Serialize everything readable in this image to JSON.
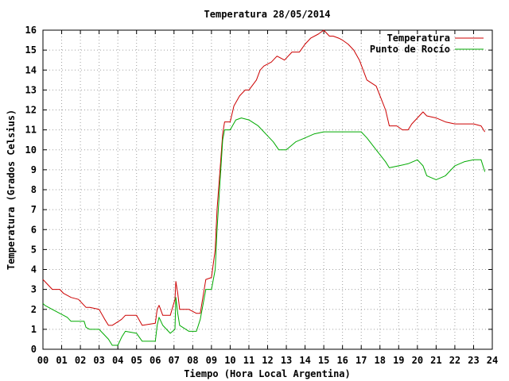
{
  "chart_data": {
    "type": "line",
    "title": "Temperatura 28/05/2014",
    "xlabel": "Tiempo (Hora Local Argentina)",
    "ylabel": "Temperatura (Grados Celsius)",
    "xlim": [
      0,
      24
    ],
    "ylim": [
      0,
      16
    ],
    "x_ticks": [
      "00",
      "01",
      "02",
      "03",
      "04",
      "05",
      "06",
      "07",
      "08",
      "09",
      "10",
      "11",
      "12",
      "13",
      "14",
      "15",
      "16",
      "17",
      "18",
      "19",
      "20",
      "21",
      "22",
      "23",
      "24"
    ],
    "y_ticks": [
      "0",
      "1",
      "2",
      "3",
      "4",
      "5",
      "6",
      "7",
      "8",
      "9",
      "10",
      "11",
      "12",
      "13",
      "14",
      "15",
      "16"
    ],
    "grid": true,
    "legend_position": "top-right",
    "series": [
      {
        "name": "Temperatura",
        "color": "#cc0000",
        "x": [
          0,
          0.1,
          0.5,
          0.9,
          1.1,
          1.5,
          1.9,
          2.3,
          2.5,
          3.0,
          3.3,
          3.5,
          3.7,
          4.2,
          4.4,
          5.0,
          5.3,
          6.0,
          6.1,
          6.2,
          6.4,
          6.8,
          7.05,
          7.1,
          7.2,
          7.3,
          7.8,
          8.2,
          8.4,
          8.7,
          9.0,
          9.2,
          9.3,
          9.5,
          9.6,
          9.7,
          10.0,
          10.2,
          10.5,
          10.8,
          11.0,
          11.4,
          11.6,
          11.8,
          12.2,
          12.5,
          12.9,
          13.3,
          13.7,
          14.0,
          14.3,
          14.7,
          15.0,
          15.3,
          15.5,
          15.8,
          16.0,
          16.3,
          16.6,
          16.9,
          17.3,
          17.8,
          18.3,
          18.5,
          18.9,
          19.2,
          19.5,
          19.7,
          20.0,
          20.3,
          20.5,
          21.0,
          21.5,
          22.0,
          23.0,
          23.4,
          23.6
        ],
        "values": [
          3.5,
          3.4,
          3.0,
          3.0,
          2.8,
          2.6,
          2.5,
          2.1,
          2.1,
          2.0,
          1.5,
          1.2,
          1.2,
          1.5,
          1.7,
          1.7,
          1.2,
          1.3,
          2.0,
          2.2,
          1.7,
          1.7,
          2.5,
          3.4,
          2.8,
          2.0,
          2.0,
          1.8,
          1.8,
          3.5,
          3.6,
          5.0,
          7.0,
          9.5,
          10.8,
          11.4,
          11.4,
          12.2,
          12.7,
          13.0,
          13.0,
          13.5,
          14.0,
          14.2,
          14.4,
          14.7,
          14.5,
          14.9,
          14.9,
          15.3,
          15.6,
          15.8,
          16.0,
          15.7,
          15.7,
          15.6,
          15.5,
          15.3,
          15.0,
          14.5,
          13.5,
          13.2,
          12.0,
          11.2,
          11.2,
          11.0,
          11.0,
          11.3,
          11.6,
          11.9,
          11.7,
          11.6,
          11.4,
          11.3,
          11.3,
          11.2,
          10.9
        ]
      },
      {
        "name": "Punto de Rocío",
        "color": "#00aa00",
        "x": [
          0,
          0.1,
          0.5,
          0.9,
          1.3,
          1.5,
          2.2,
          2.3,
          2.5,
          3.0,
          3.2,
          3.5,
          3.7,
          4.0,
          4.2,
          4.4,
          5.0,
          5.3,
          6.0,
          6.1,
          6.2,
          6.4,
          6.8,
          7.05,
          7.1,
          7.2,
          7.3,
          7.8,
          8.2,
          8.4,
          8.7,
          9.0,
          9.2,
          9.3,
          9.5,
          9.6,
          9.7,
          10.0,
          10.3,
          10.6,
          11.0,
          11.5,
          12.0,
          12.3,
          12.6,
          13.0,
          13.5,
          14.0,
          14.5,
          15.0,
          15.5,
          16.0,
          16.5,
          17.0,
          17.3,
          17.8,
          18.3,
          18.5,
          19.0,
          19.5,
          20.0,
          20.3,
          20.5,
          21.0,
          21.5,
          22.0,
          22.5,
          23.0,
          23.4,
          23.6
        ],
        "values": [
          2.3,
          2.2,
          2.0,
          1.8,
          1.6,
          1.4,
          1.4,
          1.1,
          1.0,
          1.0,
          0.8,
          0.5,
          0.2,
          0.2,
          0.6,
          0.9,
          0.8,
          0.4,
          0.4,
          1.2,
          1.6,
          1.2,
          0.8,
          1.0,
          2.6,
          1.8,
          1.2,
          0.9,
          0.9,
          1.5,
          3.0,
          3.0,
          4.0,
          6.0,
          9.0,
          10.5,
          11.0,
          11.0,
          11.5,
          11.6,
          11.5,
          11.2,
          10.7,
          10.4,
          10.0,
          10.0,
          10.4,
          10.6,
          10.8,
          10.9,
          10.9,
          10.9,
          10.9,
          10.9,
          10.6,
          10.0,
          9.4,
          9.1,
          9.2,
          9.3,
          9.5,
          9.2,
          8.7,
          8.5,
          8.7,
          9.2,
          9.4,
          9.5,
          9.5,
          8.9
        ]
      }
    ]
  }
}
